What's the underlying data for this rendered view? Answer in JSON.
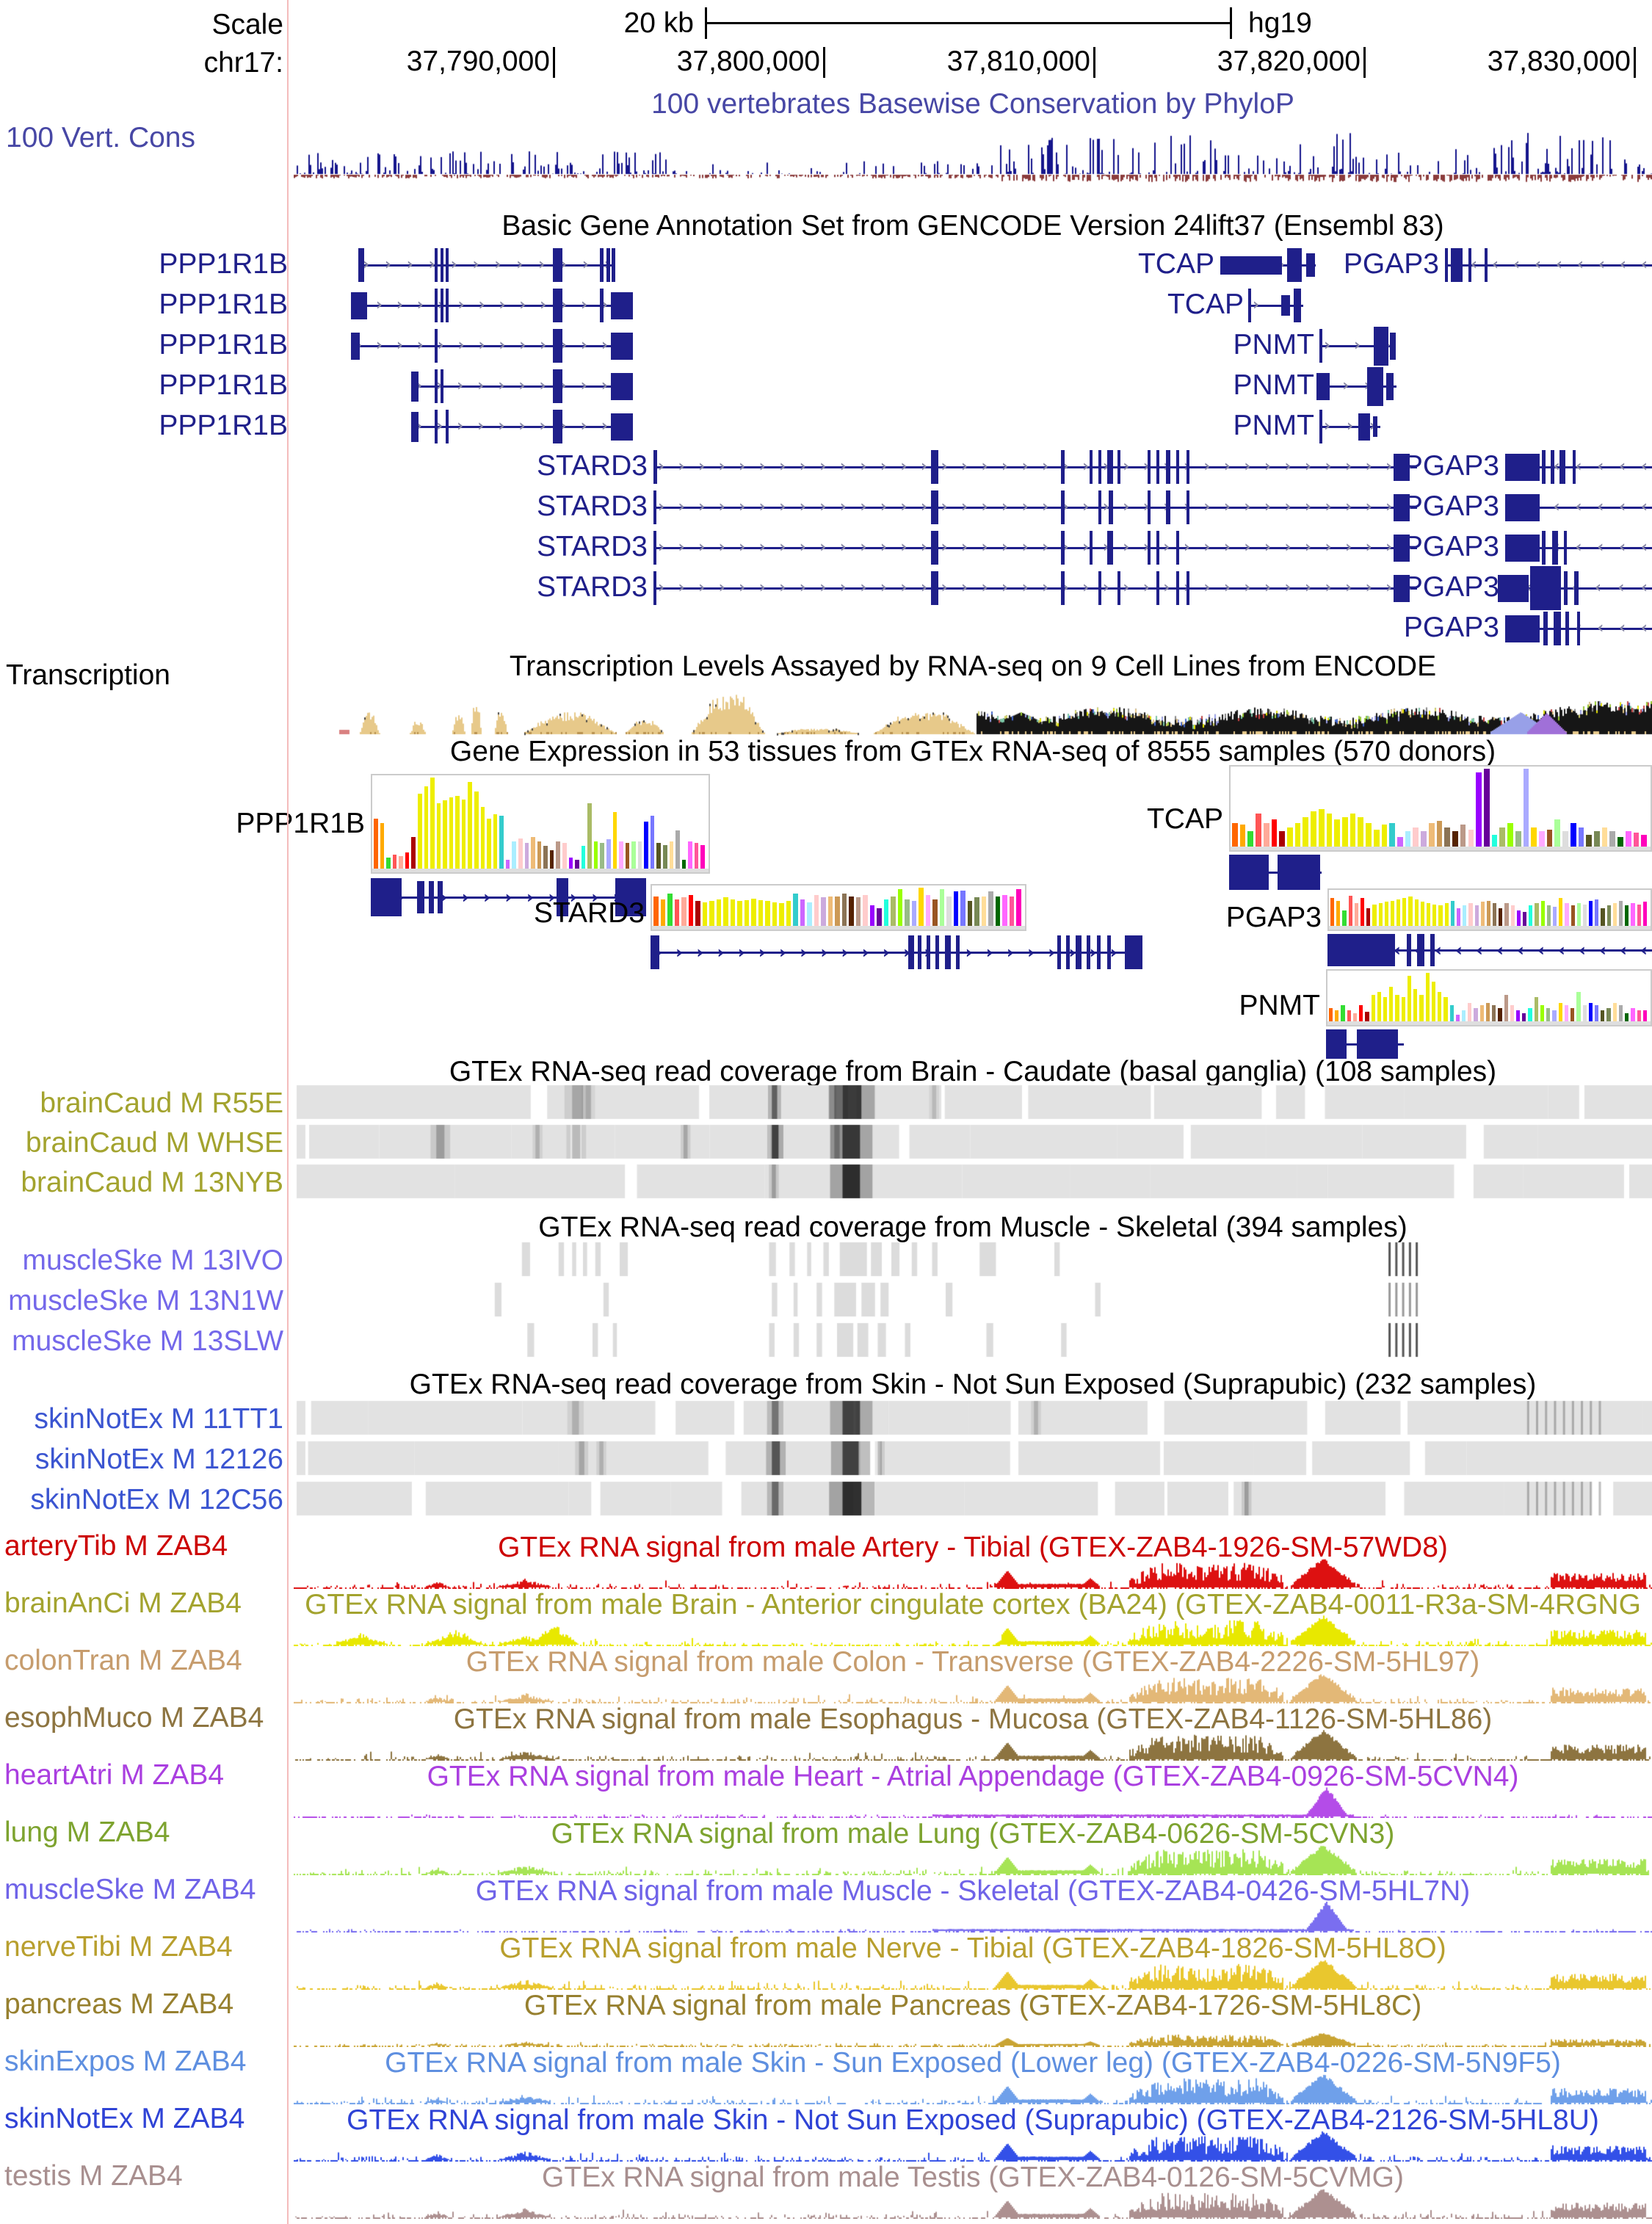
{
  "ruler": {
    "scale_label": "Scale",
    "scale_value": "20 kb",
    "assembly": "hg19",
    "chrom_label": "chr17:",
    "ticks": [
      "37,790,000",
      "37,800,000",
      "37,810,000",
      "37,820,000",
      "37,830,000"
    ]
  },
  "conservation": {
    "title": "100 vertebrates Basewise Conservation by PhyloP",
    "left_label": "100 Vert. Cons",
    "title_color": "#4747a5",
    "positive_color": "#15158c",
    "negative_color": "#8b3b3b"
  },
  "genes": {
    "title": "Basic Gene Annotation Set from GENCODE Version 24lift37 (Ensembl 83)",
    "name_color": "#1f1f8a",
    "rows": [
      [
        "PPP1R1B",
        "TCAP",
        "PGAP3"
      ],
      [
        "PPP1R1B",
        "TCAP"
      ],
      [
        "PPP1R1B",
        "PNMT"
      ],
      [
        "PPP1R1B",
        "PNMT"
      ],
      [
        "PPP1R1B",
        "PNMT"
      ],
      [
        "STARD3",
        "PGAP3"
      ],
      [
        "STARD3",
        "PGAP3"
      ],
      [
        "STARD3",
        "PGAP3"
      ],
      [
        "STARD3",
        "PGAP3"
      ],
      [
        "PGAP3"
      ]
    ]
  },
  "transcription": {
    "title": "Transcription Levels Assayed by RNA-seq on 9 Cell Lines from ENCODE",
    "left_label": "Transcription",
    "tan_color": "#e7c98a"
  },
  "gtex": {
    "title": "Gene Expression in 53 tissues from GTEx RNA-seq of 8555 samples (570 donors)"
  },
  "chart_data": {
    "type": "bar",
    "title": "Gene Expression in 53 tissues from GTEx RNA-seq of 8555 samples (570 donors)",
    "categories_note": "53 GTEx tissues, one bar per tissue, bar color = GTEx tissue color",
    "palette": [
      "#ff6600",
      "#ffaa00",
      "#33dd33",
      "#ff5555",
      "#ffaa99",
      "#ff0000",
      "#aa0000",
      "#eeee00",
      "#eeee00",
      "#eeee00",
      "#eeee00",
      "#eeee00",
      "#eeee00",
      "#eeee00",
      "#eeee00",
      "#eeee00",
      "#eeee00",
      "#eeee00",
      "#eeee00",
      "#eeee00",
      "#33cccc",
      "#cc66ff",
      "#aaeeff",
      "#ffcccc",
      "#ccaadd",
      "#eebb77",
      "#cc9955",
      "#8b7355",
      "#552200",
      "#bb9988",
      "#ffcccc",
      "#9900ff",
      "#660099",
      "#22ffdd",
      "#aabb66",
      "#99ff00",
      "#99bb88",
      "#aaaaff",
      "#ffd700",
      "#ffaaff",
      "#995522",
      "#aaff99",
      "#dddddd",
      "#0000ff",
      "#7777ff",
      "#555522",
      "#778855",
      "#ffdd99",
      "#aaaaaa",
      "#006600",
      "#ff66ff",
      "#ff5599",
      "#ff00bb"
    ],
    "panels": [
      {
        "gene": "PPP1R1B",
        "heights": [
          0.55,
          0.5,
          0.12,
          0.15,
          0.14,
          0.18,
          0.35,
          0.82,
          0.9,
          1.0,
          0.72,
          0.75,
          0.78,
          0.8,
          0.76,
          0.95,
          0.85,
          0.68,
          0.55,
          0.6,
          0.58,
          0.1,
          0.3,
          0.33,
          0.28,
          0.35,
          0.3,
          0.25,
          0.2,
          0.3,
          0.28,
          0.12,
          0.1,
          0.25,
          0.72,
          0.3,
          0.28,
          0.32,
          0.62,
          0.3,
          0.28,
          0.3,
          0.3,
          0.52,
          0.58,
          0.28,
          0.26,
          0.3,
          0.42,
          0.1,
          0.3,
          0.28,
          0.26
        ]
      },
      {
        "gene": "TCAP",
        "heights": [
          0.3,
          0.28,
          0.2,
          0.42,
          0.3,
          0.35,
          0.2,
          0.25,
          0.3,
          0.38,
          0.45,
          0.48,
          0.42,
          0.35,
          0.38,
          0.42,
          0.38,
          0.3,
          0.22,
          0.28,
          0.3,
          0.12,
          0.2,
          0.25,
          0.2,
          0.3,
          0.33,
          0.25,
          0.2,
          0.28,
          0.22,
          0.95,
          1.0,
          0.15,
          0.25,
          0.3,
          0.2,
          1.0,
          0.25,
          0.2,
          0.22,
          0.35,
          0.2,
          0.3,
          0.25,
          0.15,
          0.2,
          0.25,
          0.2,
          0.12,
          0.2,
          0.18,
          0.15
        ]
      },
      {
        "gene": "STARD3",
        "heights": [
          0.5,
          0.45,
          0.55,
          0.45,
          0.48,
          0.52,
          0.42,
          0.4,
          0.42,
          0.45,
          0.48,
          0.45,
          0.42,
          0.44,
          0.46,
          0.44,
          0.42,
          0.4,
          0.38,
          0.42,
          0.55,
          0.45,
          0.4,
          0.52,
          0.48,
          0.5,
          0.5,
          0.55,
          0.5,
          0.48,
          0.52,
          0.35,
          0.3,
          0.45,
          0.5,
          0.62,
          0.45,
          0.42,
          0.72,
          0.52,
          0.45,
          0.62,
          0.5,
          0.58,
          0.6,
          0.42,
          0.48,
          0.5,
          0.58,
          0.5,
          0.52,
          0.5,
          0.62
        ]
      },
      {
        "gene": "PGAP3",
        "heights": [
          0.55,
          0.5,
          0.3,
          0.6,
          0.45,
          0.55,
          0.35,
          0.42,
          0.45,
          0.48,
          0.5,
          0.52,
          0.55,
          0.58,
          0.52,
          0.48,
          0.45,
          0.42,
          0.4,
          0.45,
          0.5,
          0.35,
          0.4,
          0.45,
          0.4,
          0.48,
          0.5,
          0.45,
          0.35,
          0.45,
          0.4,
          0.3,
          0.28,
          0.4,
          0.45,
          0.5,
          0.4,
          0.38,
          0.55,
          0.45,
          0.4,
          0.45,
          0.42,
          0.5,
          0.52,
          0.35,
          0.4,
          0.45,
          0.5,
          0.4,
          0.45,
          0.42,
          0.48
        ]
      },
      {
        "gene": "PNMT",
        "heights": [
          0.25,
          0.2,
          0.3,
          0.2,
          0.15,
          0.3,
          0.18,
          0.5,
          0.55,
          0.45,
          0.65,
          0.5,
          0.45,
          0.85,
          0.6,
          0.5,
          0.95,
          0.75,
          0.55,
          0.45,
          0.3,
          0.12,
          0.2,
          0.35,
          0.25,
          0.3,
          0.35,
          0.3,
          0.25,
          0.5,
          0.3,
          0.2,
          0.15,
          0.25,
          0.45,
          0.3,
          0.25,
          0.2,
          0.35,
          0.3,
          0.25,
          0.55,
          0.3,
          0.35,
          0.3,
          0.2,
          0.25,
          0.35,
          0.3,
          0.15,
          0.25,
          0.2,
          0.2
        ]
      }
    ]
  },
  "coverage_sections": [
    {
      "title": "GTEx RNA-seq read coverage from Brain - Caudate (basal ganglia) (108 samples)",
      "label_color": "#a3a32e",
      "rows": [
        "brainCaud M R55E",
        "brainCaud M WHSE",
        "brainCaud M 13NYB"
      ]
    },
    {
      "title": "GTEx RNA-seq read coverage from Muscle - Skeletal (394 samples)",
      "label_color": "#7468ea",
      "rows": [
        "muscleSke M 13IVO",
        "muscleSke M 13N1W",
        "muscleSke M 13SLW"
      ]
    },
    {
      "title": "GTEx RNA-seq read coverage from Skin - Not Sun Exposed (Suprapubic) (232 samples)",
      "label_color": "#3b55d1",
      "rows": [
        "skinNotEx M 11TT1",
        "skinNotEx M 12126",
        "skinNotEx M 12C56"
      ]
    }
  ],
  "signal_tracks": [
    {
      "label": "arteryTib M ZAB4",
      "title": "GTEx RNA signal from male Artery - Tibial (GTEX-ZAB4-1926-SM-57WD8)",
      "color": "#cc0000",
      "signal_color": "#dd1111",
      "profile": "common"
    },
    {
      "label": "brainAnCi M ZAB4",
      "title": "GTEx RNA signal from male Brain - Anterior cingulate cortex (BA24) (GTEX-ZAB4-0011-R3a-SM-4RGNG",
      "color": "#a3a32e",
      "signal_color": "#e8e800",
      "profile": "brain"
    },
    {
      "label": "colonTran M ZAB4",
      "title": "GTEx RNA signal from male Colon - Transverse (GTEX-ZAB4-2226-SM-5HL97)",
      "color": "#c69c6d",
      "signal_color": "#e3b877",
      "profile": "common"
    },
    {
      "label": "esophMuco M ZAB4",
      "title": "GTEx RNA signal from male Esophagus - Mucosa (GTEX-ZAB4-1126-SM-5HL86)",
      "color": "#8d7440",
      "signal_color": "#8d7440",
      "profile": "common"
    },
    {
      "label": "heartAtri M ZAB4",
      "title": "GTEx RNA signal from male Heart - Atrial Appendage (GTEX-ZAB4-0926-SM-5CVN4)",
      "color": "#aa3fe0",
      "signal_color": "#b44ce8",
      "profile": "quiet"
    },
    {
      "label": "lung M ZAB4",
      "title": "GTEx RNA signal from male Lung (GTEX-ZAB4-0626-SM-5CVN3)",
      "color": "#7da32f",
      "signal_color": "#a6e455",
      "profile": "common"
    },
    {
      "label": "muscleSke M ZAB4",
      "title": "GTEx RNA signal from male Muscle - Skeletal (GTEX-ZAB4-0426-SM-5HL7N)",
      "color": "#6f63e8",
      "signal_color": "#7a6ef0",
      "profile": "quiet"
    },
    {
      "label": "nerveTibi M ZAB4",
      "title": "GTEx RNA signal from male Nerve - Tibial (GTEX-ZAB4-1826-SM-5HL8O)",
      "color": "#b89f2e",
      "signal_color": "#e9c72e",
      "profile": "common"
    },
    {
      "label": "pancreas M ZAB4",
      "title": "GTEx RNA signal from male Pancreas (GTEX-ZAB4-1726-SM-5HL8C)",
      "color": "#97802f",
      "signal_color": "#c9a433",
      "profile": "low"
    },
    {
      "label": "skinExpos M ZAB4",
      "title": "GTEx RNA signal from male Skin - Sun Exposed (Lower leg) (GTEX-ZAB4-0226-SM-5N9F5)",
      "color": "#5e8fe0",
      "signal_color": "#6fa0ea",
      "profile": "common"
    },
    {
      "label": "skinNotEx M ZAB4",
      "title": "GTEx RNA signal from male Skin - Not Sun Exposed (Suprapubic) (GTEX-ZAB4-2126-SM-5HL8U)",
      "color": "#2f43d6",
      "signal_color": "#3350e8",
      "profile": "common"
    },
    {
      "label": "testis M ZAB4",
      "title": "GTEx RNA signal from male Testis (GTEX-ZAB4-0126-SM-5CVMG)",
      "color": "#a88f8f",
      "signal_color": "#ad9090",
      "profile": "common"
    }
  ],
  "colors": {
    "separator": "#f4bcbc",
    "gene_navy": "#1f1f8a",
    "intron_arrow": "#8a8aa8",
    "coverage_gray": "#e2e2e2"
  }
}
